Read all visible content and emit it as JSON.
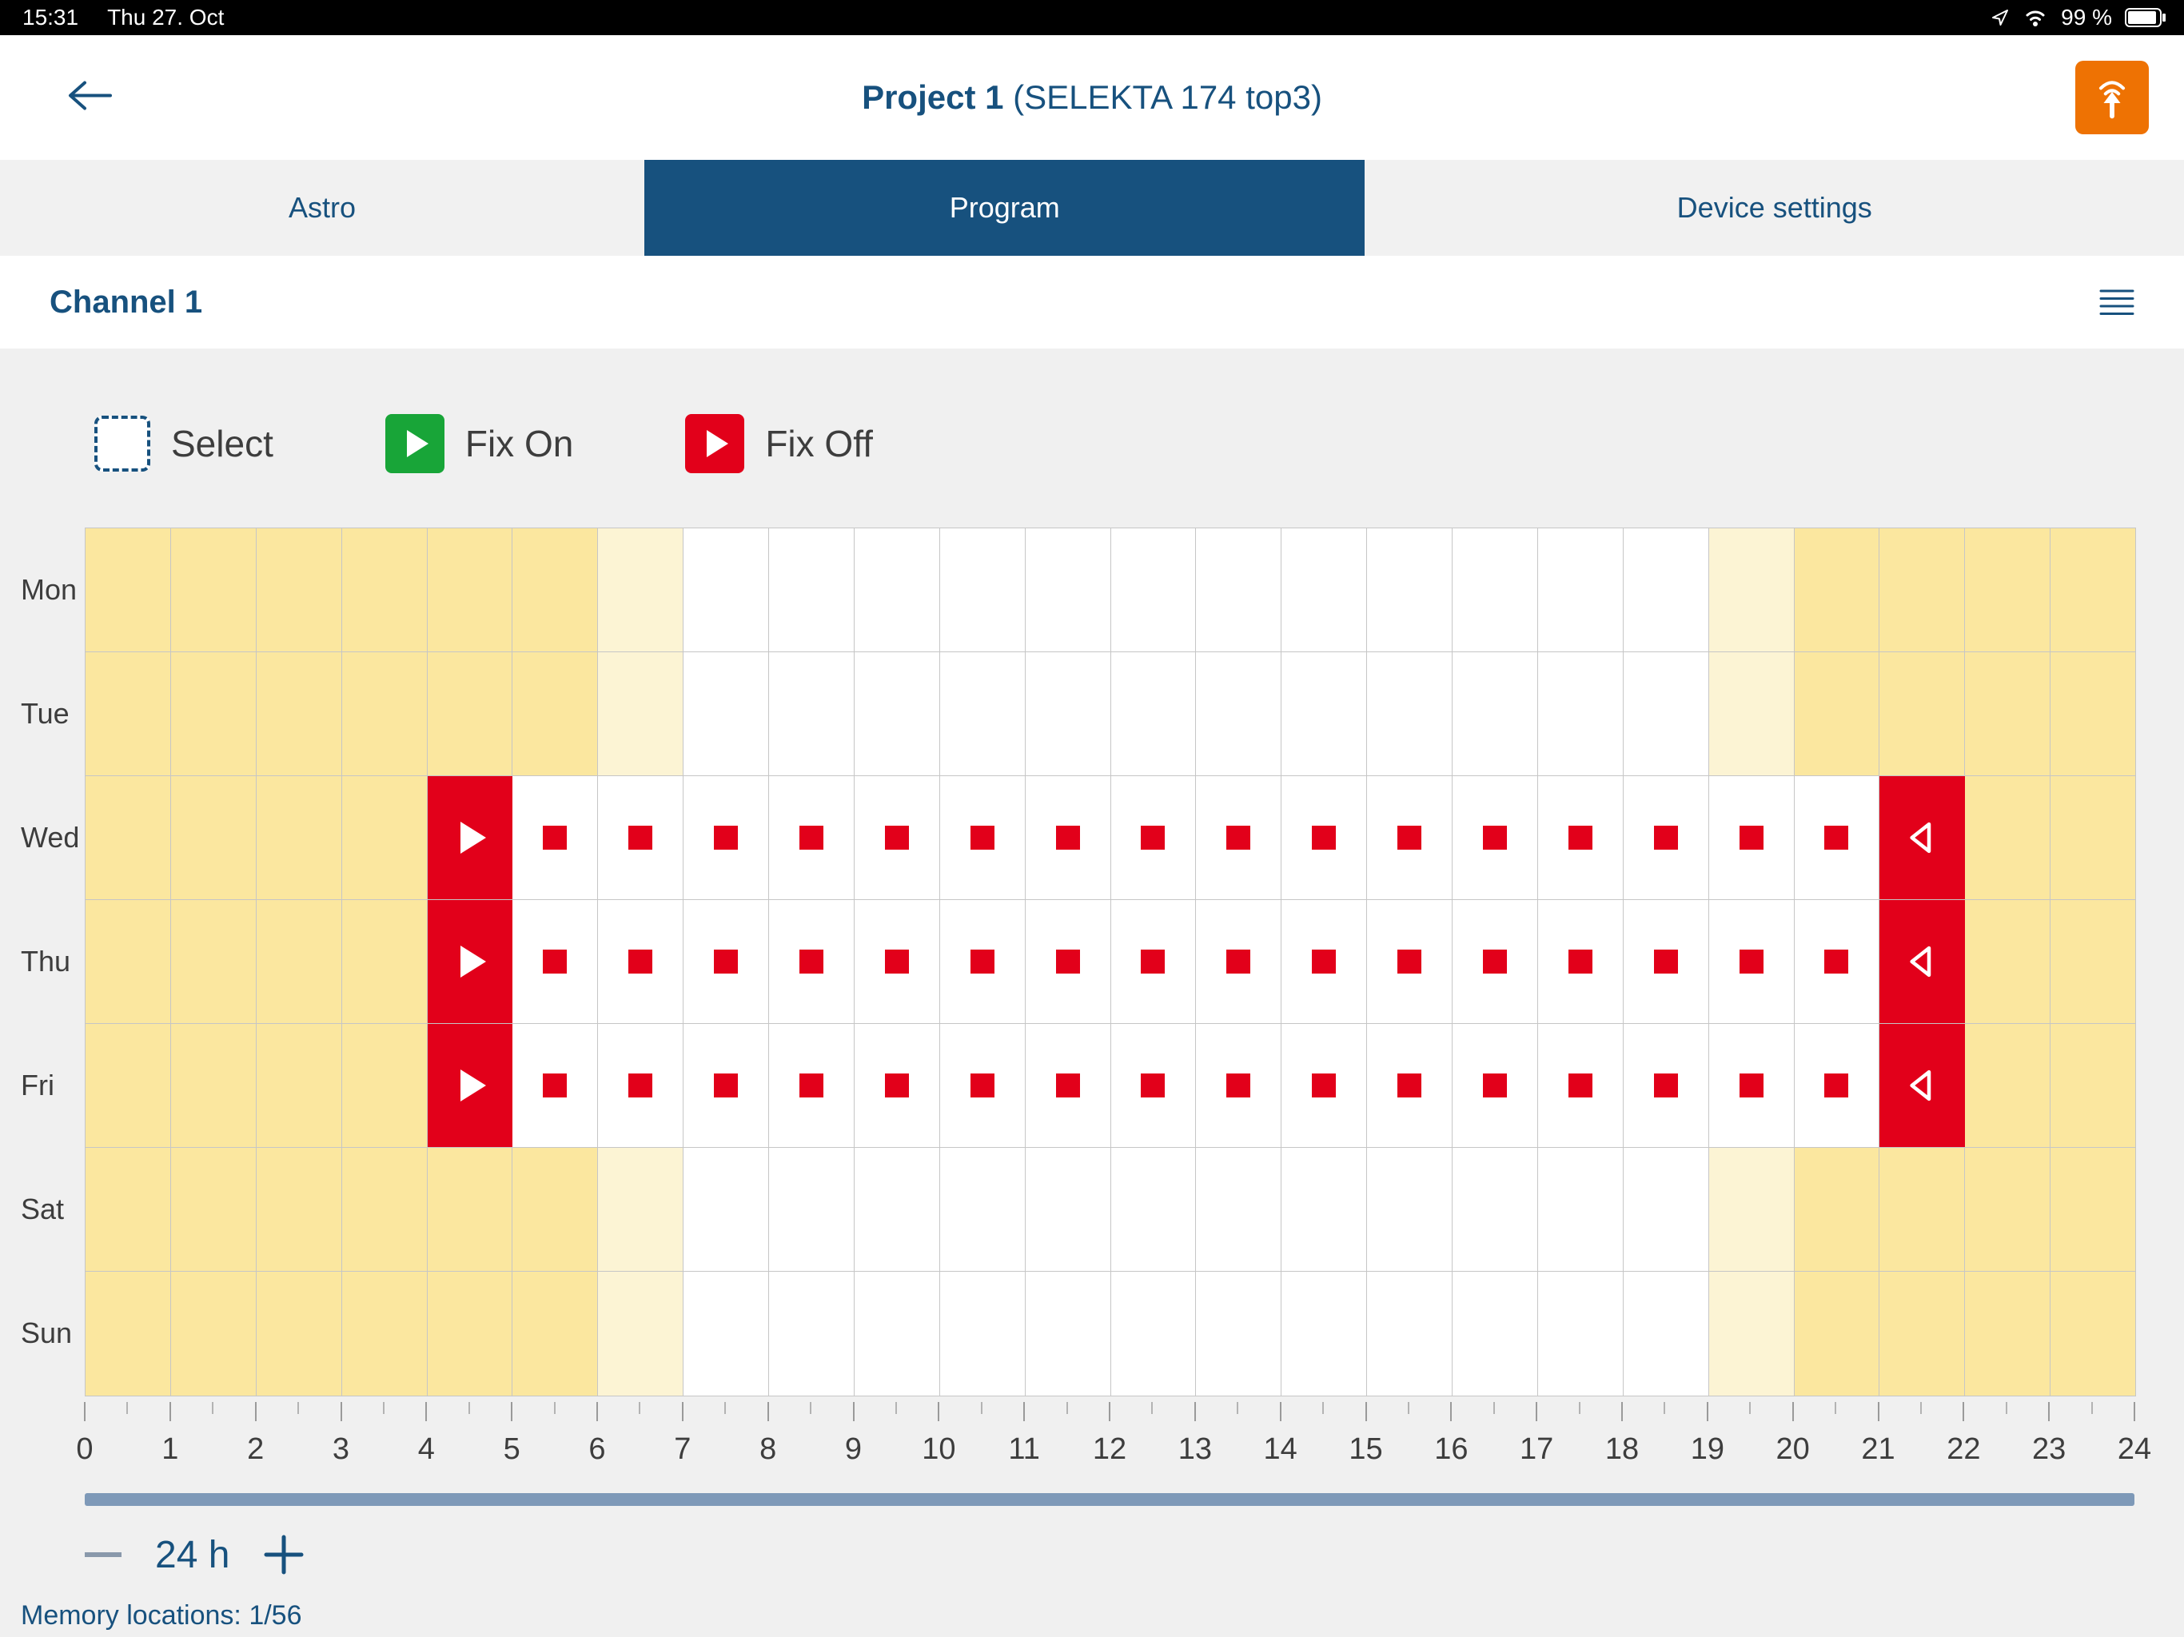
{
  "status_bar": {
    "time": "15:31",
    "date": "Thu 27. Oct",
    "battery": "99 %",
    "icons": [
      "navigation-arrow-icon",
      "wifi-icon",
      "battery-icon"
    ]
  },
  "header": {
    "title_bold": "Project 1",
    "title_suffix": "(SELEKTA 174 top3)"
  },
  "tabs": [
    {
      "label": "Astro",
      "active": false
    },
    {
      "label": "Program",
      "active": true
    },
    {
      "label": "Device settings",
      "active": false
    }
  ],
  "channel": {
    "label": "Channel 1"
  },
  "legend": {
    "select": "Select",
    "fix_on": "Fix On",
    "fix_off": "Fix Off"
  },
  "schedule": {
    "days": [
      "Mon",
      "Tue",
      "Wed",
      "Thu",
      "Fri",
      "Sat",
      "Sun"
    ],
    "hours": [
      0,
      1,
      2,
      3,
      4,
      5,
      6,
      7,
      8,
      9,
      10,
      11,
      12,
      13,
      14,
      15,
      16,
      17,
      18,
      19,
      20,
      21,
      22,
      23,
      24
    ],
    "rows": [
      {
        "day": "Mon",
        "cells": [
          "y",
          "y",
          "y",
          "y",
          "y",
          "y",
          "p",
          "w",
          "w",
          "w",
          "w",
          "w",
          "w",
          "w",
          "w",
          "w",
          "w",
          "w",
          "w",
          "p",
          "y",
          "y",
          "y",
          "y"
        ]
      },
      {
        "day": "Tue",
        "cells": [
          "y",
          "y",
          "y",
          "y",
          "y",
          "y",
          "p",
          "w",
          "w",
          "w",
          "w",
          "w",
          "w",
          "w",
          "w",
          "w",
          "w",
          "w",
          "w",
          "p",
          "y",
          "y",
          "y",
          "y"
        ]
      },
      {
        "day": "Wed",
        "cells": [
          "y",
          "y",
          "y",
          "y",
          "on",
          "sq",
          "sq",
          "sq",
          "sq",
          "sq",
          "sq",
          "sq",
          "sq",
          "sq",
          "sq",
          "sq",
          "sq",
          "sq",
          "sq",
          "sq",
          "sq",
          "off",
          "y",
          "y"
        ]
      },
      {
        "day": "Thu",
        "cells": [
          "y",
          "y",
          "y",
          "y",
          "on",
          "sq",
          "sq",
          "sq",
          "sq",
          "sq",
          "sq",
          "sq",
          "sq",
          "sq",
          "sq",
          "sq",
          "sq",
          "sq",
          "sq",
          "sq",
          "sq",
          "off",
          "y",
          "y"
        ]
      },
      {
        "day": "Fri",
        "cells": [
          "y",
          "y",
          "y",
          "y",
          "on",
          "sq",
          "sq",
          "sq",
          "sq",
          "sq",
          "sq",
          "sq",
          "sq",
          "sq",
          "sq",
          "sq",
          "sq",
          "sq",
          "sq",
          "sq",
          "sq",
          "off",
          "y",
          "y"
        ]
      },
      {
        "day": "Sat",
        "cells": [
          "y",
          "y",
          "y",
          "y",
          "y",
          "y",
          "p",
          "w",
          "w",
          "w",
          "w",
          "w",
          "w",
          "w",
          "w",
          "w",
          "w",
          "w",
          "w",
          "p",
          "y",
          "y",
          "y",
          "y"
        ]
      },
      {
        "day": "Sun",
        "cells": [
          "y",
          "y",
          "y",
          "y",
          "y",
          "y",
          "p",
          "w",
          "w",
          "w",
          "w",
          "w",
          "w",
          "w",
          "w",
          "w",
          "w",
          "w",
          "w",
          "p",
          "y",
          "y",
          "y",
          "y"
        ]
      }
    ],
    "fix_on_hour": 4,
    "fix_off_hour": 21
  },
  "zoom": {
    "label": "24 h"
  },
  "footer": {
    "memory": "Memory locations: 1/56"
  },
  "colors": {
    "accent_blue": "#17517E",
    "active_tab_bg": "#17517E",
    "brand_orange": "#EE7203",
    "fix_on_green": "#18A538",
    "fix_red": "#E2001A",
    "night_yellow": "#FBE79F",
    "twilight_yellow": "#FCF4D4",
    "scrollbar_blue": "#7E99B8",
    "statusbar_bg": "#000000"
  }
}
